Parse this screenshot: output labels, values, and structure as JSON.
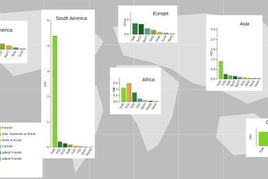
{
  "chart_data": [
    {
      "type": "bar",
      "title": "North America",
      "ylabel": "GtC",
      "categories": [
        "TrMr",
        "TeBr",
        "TeCF",
        "BoFT",
        "TeGr",
        "Tund"
      ],
      "values": [
        0.05,
        0.3,
        0.12,
        0.08,
        0.04,
        0.02
      ],
      "colors": [
        "#7fd321",
        "#2e7d32",
        "#8aa83a",
        "#e8a33a",
        "#4fa39a",
        "#9c9c9c"
      ],
      "ylim": [
        0,
        0.4
      ],
      "yticks": [
        {
          "value": 0,
          "label": "0.0"
        },
        {
          "value": 0.2,
          "label": "0.2"
        }
      ]
    },
    {
      "type": "bar",
      "title": "South America",
      "ylabel": "GtC",
      "categories": [
        "TrMr",
        "TrDr",
        "TrCF",
        "TeBr",
        "TrGr",
        "FGr",
        "Mont",
        "Mang"
      ],
      "values": [
        4.4,
        0.22,
        0.15,
        0.1,
        0.05,
        0.03,
        0.02,
        0.01
      ],
      "colors": [
        "#7fd321",
        "#2e7d32",
        "#1b5e20",
        "#8aa83a",
        "#e8a33a",
        "#4fa39a",
        "#c9b25a",
        "#9c9c9c"
      ],
      "ylim": [
        0,
        5
      ],
      "yticks": [
        0,
        1,
        2,
        3,
        4,
        5
      ]
    },
    {
      "type": "bar",
      "title": "Europe",
      "ylabel": "GtC",
      "categories": [
        "TeBr",
        "TeCF",
        "BoFT",
        "TeGr",
        "Medi",
        "Tund",
        "Mont"
      ],
      "values": [
        0.15,
        0.14,
        0.08,
        0.06,
        0.03,
        0.02,
        0.01
      ],
      "colors": [
        "#2e7d32",
        "#1b5e20",
        "#4fa39a",
        "#8aa83a",
        "#e8a33a",
        "#9c9c9c",
        "#c9b25a"
      ],
      "ylim": [
        0,
        0.3
      ],
      "yticks": [
        {
          "value": 0,
          "label": "0.0"
        },
        {
          "value": 0.2,
          "label": "0.2"
        }
      ]
    },
    {
      "type": "bar",
      "title": "Africa",
      "ylabel": "GtC",
      "categories": [
        "TrMr",
        "TrGr",
        "TrDr",
        "FGr",
        "Mont",
        "Mang",
        "Dese"
      ],
      "values": [
        0.45,
        0.6,
        0.3,
        0.1,
        0.05,
        0.03,
        0.02
      ],
      "colors": [
        "#7fd321",
        "#e8a33a",
        "#2e7d32",
        "#4fa39a",
        "#c9b25a",
        "#1b5e20",
        "#9c9c9c"
      ],
      "ylim": [
        0,
        0.8
      ],
      "yticks": [
        {
          "value": 0,
          "label": "0.0"
        },
        {
          "value": 0.2,
          "label": "0.2"
        },
        {
          "value": 0.4,
          "label": "0.4"
        },
        {
          "value": 0.6,
          "label": "0.6"
        }
      ]
    },
    {
      "type": "bar",
      "title": "Asia",
      "ylabel": "GtC",
      "categories": [
        "TrMr",
        "TrDr",
        "TeBr",
        "TeCF",
        "BoFT",
        "TrGr",
        "TeGr",
        "Mont",
        "Dese"
      ],
      "values": [
        0.9,
        0.25,
        0.18,
        0.15,
        0.1,
        0.08,
        0.06,
        0.05,
        0.04
      ],
      "colors": [
        "#7fd321",
        "#2e7d32",
        "#8aa83a",
        "#1b5e20",
        "#4fa39a",
        "#e8a33a",
        "#c9b25a",
        "#a0a0a0",
        "#9c9c9c"
      ],
      "ylim": [
        0,
        2.6
      ],
      "yticks": [
        {
          "value": 0,
          "label": "0.0"
        },
        {
          "value": 0.5,
          "label": "0.5"
        },
        {
          "value": 1,
          "label": "1.0"
        },
        {
          "value": 1.5,
          "label": "1.5"
        },
        {
          "value": 2,
          "label": "2.0"
        },
        {
          "value": 2.5,
          "label": "2.5"
        }
      ]
    },
    {
      "type": "bar",
      "title": "Oceania",
      "ylabel": "GtC",
      "categories": [
        "TrMr",
        "TeBr"
      ],
      "values": [
        0.3,
        0.25
      ],
      "colors": [
        "#7fd321",
        "#2e7d32"
      ],
      "ylim": [
        0,
        0.4
      ],
      "yticks": []
    }
  ],
  "legend": {
    "items": [
      {
        "label": "Forests",
        "color": "#7fd321"
      },
      {
        "label": "ests, Savannas & Shrub.",
        "color": "#e8a33a"
      },
      {
        "label": "lands & Scrub",
        "color": "#c9b25a"
      },
      {
        "label": "Forests",
        "color": "#4fa39a"
      },
      {
        "label": "adleaf Forests",
        "color": "#2e7d32"
      },
      {
        "label": "adleaf Forests",
        "color": "#8aa83a"
      }
    ]
  }
}
